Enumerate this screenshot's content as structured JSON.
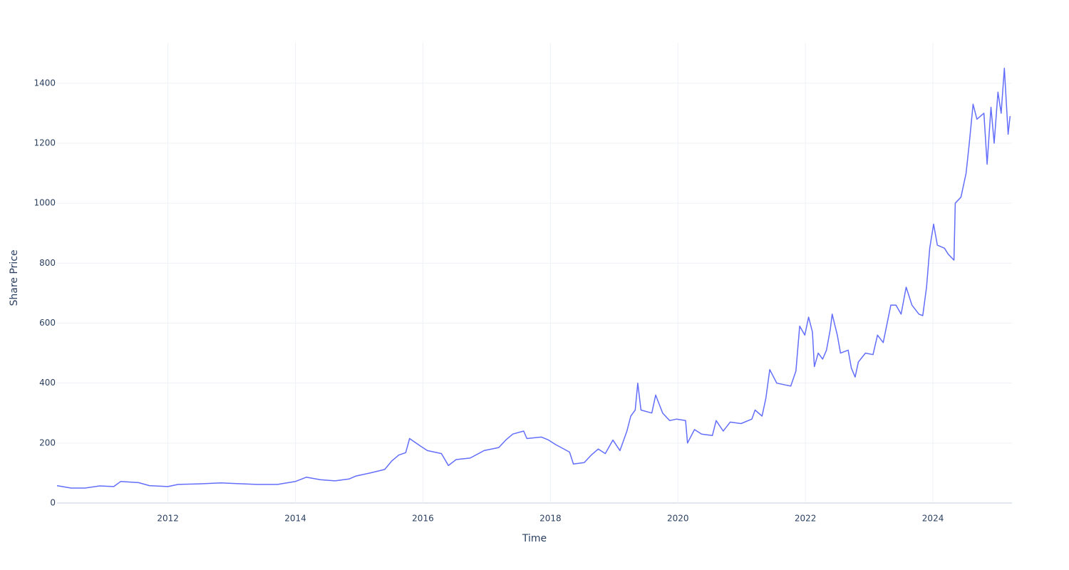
{
  "chart_data": {
    "type": "line",
    "x_label": "Time",
    "y_label": "Share Price",
    "x": [
      2010.26,
      2010.48,
      2010.7,
      2010.93,
      2011.15,
      2011.26,
      2011.54,
      2011.71,
      2012.0,
      2012.16,
      2012.49,
      2012.83,
      2013.05,
      2013.39,
      2013.72,
      2014.0,
      2014.17,
      2014.39,
      2014.62,
      2014.84,
      2014.95,
      2015.17,
      2015.4,
      2015.51,
      2015.62,
      2015.73,
      2015.79,
      2015.96,
      2016.07,
      2016.29,
      2016.4,
      2016.52,
      2016.74,
      2016.96,
      2017.19,
      2017.3,
      2017.41,
      2017.58,
      2017.63,
      2017.86,
      2017.97,
      2018.08,
      2018.3,
      2018.36,
      2018.53,
      2018.64,
      2018.75,
      2018.86,
      2018.98,
      2019.09,
      2019.2,
      2019.26,
      2019.33,
      2019.37,
      2019.42,
      2019.59,
      2019.65,
      2019.76,
      2019.87,
      2019.98,
      2020.12,
      2020.15,
      2020.26,
      2020.37,
      2020.54,
      2020.6,
      2020.71,
      2020.82,
      2020.99,
      2021.16,
      2021.21,
      2021.32,
      2021.38,
      2021.44,
      2021.55,
      2021.66,
      2021.77,
      2021.85,
      2021.91,
      2021.99,
      2022.05,
      2022.11,
      2022.14,
      2022.2,
      2022.27,
      2022.33,
      2022.39,
      2022.42,
      2022.5,
      2022.55,
      2022.67,
      2022.72,
      2022.78,
      2022.83,
      2022.94,
      2023.06,
      2023.13,
      2023.22,
      2023.34,
      2023.42,
      2023.5,
      2023.58,
      2023.67,
      2023.78,
      2023.84,
      2023.9,
      2023.95,
      2024.01,
      2024.07,
      2024.18,
      2024.24,
      2024.33,
      2024.35,
      2024.44,
      2024.52,
      2024.57,
      2024.63,
      2024.69,
      2024.8,
      2024.85,
      2024.91,
      2024.96,
      2025.02,
      2025.07,
      2025.12,
      2025.18,
      2025.21
    ],
    "values": [
      58,
      50,
      50,
      57,
      55,
      72,
      68,
      58,
      55,
      62,
      64,
      67,
      65,
      62,
      62,
      72,
      86,
      78,
      74,
      80,
      90,
      100,
      112,
      140,
      160,
      168,
      215,
      190,
      175,
      165,
      125,
      145,
      150,
      175,
      185,
      210,
      230,
      240,
      215,
      220,
      210,
      195,
      170,
      130,
      135,
      160,
      180,
      165,
      210,
      175,
      240,
      290,
      310,
      400,
      310,
      300,
      360,
      300,
      275,
      280,
      275,
      200,
      245,
      230,
      225,
      275,
      240,
      270,
      265,
      280,
      310,
      290,
      350,
      445,
      400,
      395,
      390,
      440,
      590,
      560,
      620,
      570,
      455,
      500,
      480,
      510,
      580,
      630,
      560,
      500,
      510,
      450,
      420,
      470,
      500,
      495,
      560,
      535,
      660,
      660,
      630,
      720,
      660,
      630,
      625,
      720,
      850,
      930,
      860,
      850,
      830,
      810,
      1000,
      1020,
      1100,
      1200,
      1330,
      1280,
      1300,
      1130,
      1320,
      1200,
      1370,
      1300,
      1450,
      1230,
      1290
    ],
    "color": "#636efa",
    "xlim": [
      2010.26,
      2025.24
    ],
    "xticks": [
      2012,
      2014,
      2016,
      2018,
      2020,
      2022,
      2024
    ],
    "ylim": [
      0,
      1535
    ],
    "yticks": [
      0,
      200,
      400,
      600,
      800,
      1000,
      1200,
      1400
    ],
    "grid": true
  }
}
